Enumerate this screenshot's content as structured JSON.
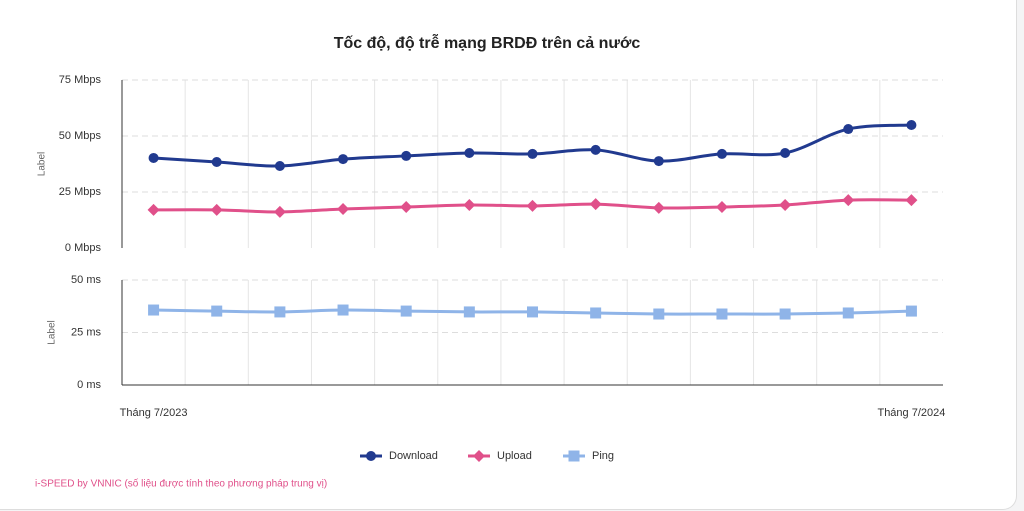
{
  "chart_data": [
    {
      "type": "line",
      "title": "Tốc độ, độ trễ mạng BRDĐ trên cả nước",
      "ylabel": "Label",
      "ylim": [
        0,
        75
      ],
      "yticks": [
        {
          "value": 0,
          "label": "0 Mbps"
        },
        {
          "value": 25,
          "label": "25 Mbps"
        },
        {
          "value": 50,
          "label": "50 Mbps"
        },
        {
          "value": 75,
          "label": "75 Mbps"
        }
      ],
      "grid": true,
      "series": [
        {
          "name": "Download",
          "color": "#213a8f",
          "marker": "circle",
          "values": [
            40.2,
            38.4,
            36.6,
            39.7,
            41.1,
            42.4,
            42.0,
            43.8,
            38.8,
            42.0,
            42.4,
            53.1,
            54.9
          ]
        },
        {
          "name": "Upload",
          "color": "#e0508a",
          "marker": "diamond",
          "values": [
            17.0,
            17.0,
            16.1,
            17.4,
            18.3,
            19.2,
            18.8,
            19.6,
            17.9,
            18.3,
            19.2,
            21.4,
            21.4
          ]
        }
      ]
    },
    {
      "type": "line",
      "ylabel": "Label",
      "categories": [
        "Tháng 7/2023",
        null,
        null,
        null,
        null,
        null,
        null,
        null,
        null,
        null,
        null,
        null,
        "Tháng 7/2024"
      ],
      "ylim": [
        0,
        50
      ],
      "yticks": [
        {
          "value": 0,
          "label": "0 ms"
        },
        {
          "value": 25,
          "label": "25 ms"
        },
        {
          "value": 50,
          "label": "50 ms"
        }
      ],
      "grid": true,
      "series": [
        {
          "name": "Ping",
          "color": "#8fb4e8",
          "marker": "square",
          "values": [
            35.7,
            35.2,
            34.8,
            35.7,
            35.2,
            34.8,
            34.8,
            34.3,
            33.8,
            33.8,
            33.8,
            34.3,
            35.2
          ]
        }
      ]
    }
  ],
  "footnote": "i-SPEED by VNNIC (số liệu được tính theo phương pháp trung vị)"
}
